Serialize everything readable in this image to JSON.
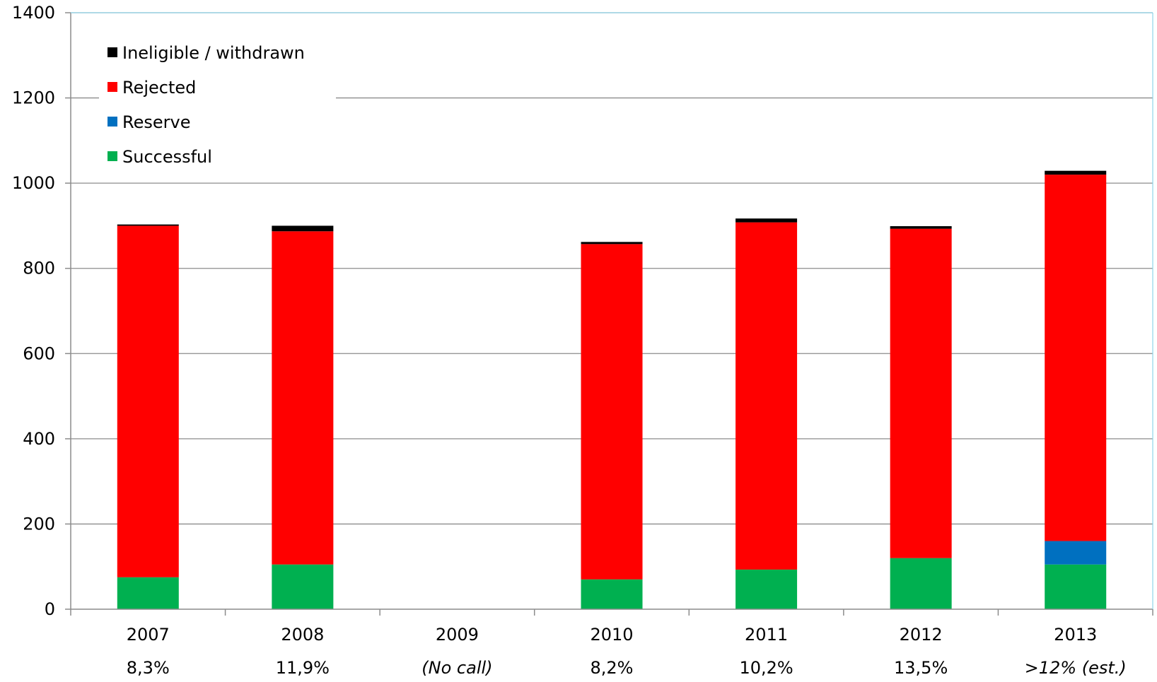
{
  "chart_data": {
    "type": "bar",
    "stacked": true,
    "categories": [
      "2007",
      "2008",
      "2009",
      "2010",
      "2011",
      "2012",
      "2013"
    ],
    "category_notes": [
      "8,3%",
      "11,9%",
      "(No call)",
      "8,2%",
      "10,2%",
      "13,5%",
      ">12% (est.)"
    ],
    "category_notes_italic": [
      false,
      false,
      true,
      false,
      false,
      false,
      true
    ],
    "series": [
      {
        "name": "Successful",
        "color": "#00b050",
        "values": [
          75,
          105,
          0,
          70,
          93,
          120,
          105
        ]
      },
      {
        "name": "Reserve",
        "color": "#0070c0",
        "values": [
          0,
          0,
          0,
          0,
          0,
          0,
          55
        ]
      },
      {
        "name": "Rejected",
        "color": "#ff0000",
        "values": [
          825,
          782,
          0,
          787,
          815,
          773,
          860
        ]
      },
      {
        "name": "Ineligible / withdrawn",
        "color": "#000000",
        "values": [
          3,
          13,
          0,
          5,
          9,
          6,
          9
        ]
      }
    ],
    "legend_order": [
      "Ineligible / withdrawn",
      "Rejected",
      "Reserve",
      "Successful"
    ],
    "legend_position": "top-left",
    "yticks": [
      0,
      200,
      400,
      600,
      800,
      1000,
      1200,
      1400
    ],
    "ylim": [
      0,
      1400
    ],
    "grid": true,
    "xlabel": "",
    "ylabel": "",
    "title": ""
  }
}
